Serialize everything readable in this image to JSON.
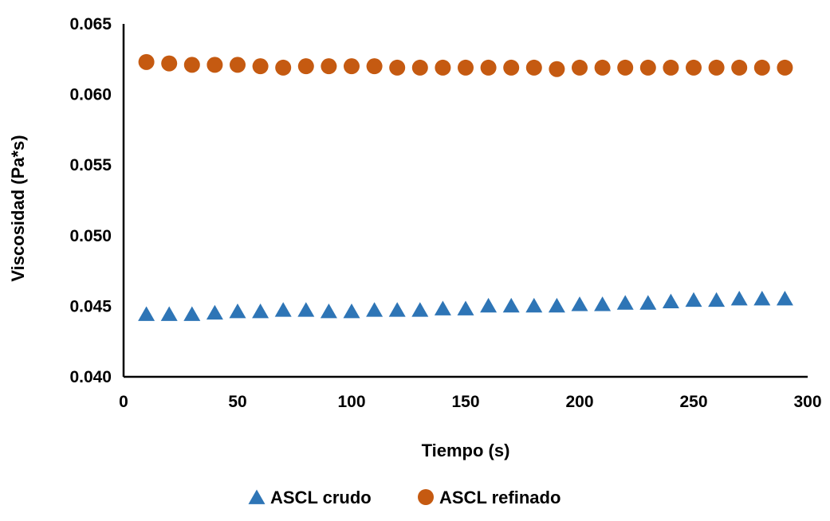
{
  "chart_data": {
    "type": "scatter",
    "title": "",
    "xlabel": "Tiempo (s)",
    "ylabel": "Viscosidad (Pa*s)",
    "xlim": [
      0,
      300
    ],
    "ylim": [
      0.04,
      0.065
    ],
    "xticks": [
      0,
      50,
      100,
      150,
      200,
      250,
      300
    ],
    "yticks": [
      0.04,
      0.045,
      0.05,
      0.055,
      0.06,
      0.065
    ],
    "ytick_labels": [
      "0.040",
      "0.045",
      "0.050",
      "0.055",
      "0.060",
      "0.065"
    ],
    "grid": false,
    "legend_position": "bottom",
    "x": [
      10,
      20,
      30,
      40,
      50,
      60,
      70,
      80,
      90,
      100,
      110,
      120,
      130,
      140,
      150,
      160,
      170,
      180,
      190,
      200,
      210,
      220,
      230,
      240,
      250,
      260,
      270,
      280,
      290
    ],
    "series": [
      {
        "name": "ASCL crudo",
        "marker": "triangle",
        "color": "#2E75B6",
        "values": [
          0.0444,
          0.0444,
          0.0444,
          0.0445,
          0.0446,
          0.0446,
          0.0447,
          0.0447,
          0.0446,
          0.0446,
          0.0447,
          0.0447,
          0.0447,
          0.0448,
          0.0448,
          0.045,
          0.045,
          0.045,
          0.045,
          0.0451,
          0.0451,
          0.0452,
          0.0452,
          0.0453,
          0.0454,
          0.0454,
          0.0455,
          0.0455,
          0.0455
        ]
      },
      {
        "name": "ASCL refinado",
        "marker": "circle",
        "color": "#C55A11",
        "values": [
          0.0623,
          0.0622,
          0.0621,
          0.0621,
          0.0621,
          0.062,
          0.0619,
          0.062,
          0.062,
          0.062,
          0.062,
          0.0619,
          0.0619,
          0.0619,
          0.0619,
          0.0619,
          0.0619,
          0.0619,
          0.0618,
          0.0619,
          0.0619,
          0.0619,
          0.0619,
          0.0619,
          0.0619,
          0.0619,
          0.0619,
          0.0619,
          0.0619
        ]
      }
    ]
  }
}
